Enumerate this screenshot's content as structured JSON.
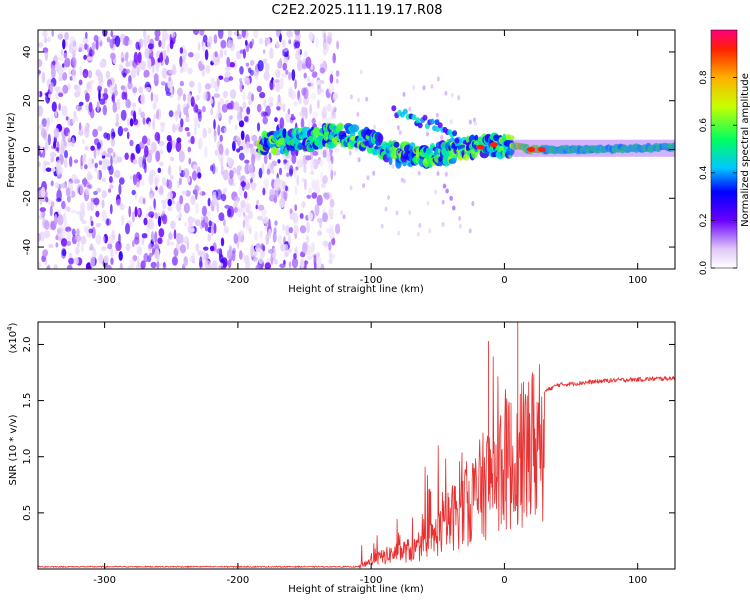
{
  "title": "C2E2.2025.111.19.17.R08",
  "chart_data": [
    {
      "type": "heatmap",
      "name": "spectrogram",
      "xlabel": "Height of straight line (km)",
      "ylabel": "Frequency (Hz)",
      "xlim": [
        -350,
        128
      ],
      "ylim": [
        -49,
        49
      ],
      "xticks": [
        -300,
        -200,
        -100,
        0,
        100
      ],
      "yticks": [
        -40,
        -20,
        0,
        20,
        40
      ],
      "noise_region_x": [
        -350,
        -133
      ],
      "signal_ridge": [
        {
          "x": -183,
          "y": 3
        },
        {
          "x": -160,
          "y": 3
        },
        {
          "x": -140,
          "y": 5
        },
        {
          "x": -120,
          "y": 6
        },
        {
          "x": -100,
          "y": 3
        },
        {
          "x": -80,
          "y": -2
        },
        {
          "x": -60,
          "y": -3
        },
        {
          "x": -40,
          "y": -1
        },
        {
          "x": -20,
          "y": 1
        },
        {
          "x": 0,
          "y": 2
        },
        {
          "x": 20,
          "y": 0
        },
        {
          "x": 60,
          "y": 0
        },
        {
          "x": 128,
          "y": 1
        }
      ],
      "upper_branch": [
        {
          "x": -83,
          "y": 15
        },
        {
          "x": -65,
          "y": 12
        },
        {
          "x": -50,
          "y": 10
        },
        {
          "x": -35,
          "y": 5
        }
      ],
      "colorbar": {
        "label": "Normalized spectral amplitude",
        "range": [
          0,
          1
        ],
        "ticks": [
          "0.0",
          "0.2",
          "0.4",
          "0.6",
          "0.8"
        ],
        "tick_values": [
          0.0,
          0.2,
          0.4,
          0.6,
          0.8
        ]
      }
    },
    {
      "type": "line",
      "name": "snr",
      "xlabel": "Height of straight line (km)",
      "ylabel": "SNR (10 * v/v)",
      "exponent_label": "(x10",
      "exponent": "4",
      "exponent_close": ")",
      "xlim": [
        -350,
        128
      ],
      "ylim": [
        0,
        2.2
      ],
      "xticks": [
        -300,
        -200,
        -100,
        0,
        100
      ],
      "yticks": [
        "0.5",
        "1.0",
        "1.5",
        "2.0"
      ],
      "ytick_values": [
        0.5,
        1.0,
        1.5,
        2.0
      ],
      "color": "#e83030",
      "series_envelope": [
        {
          "x": -350,
          "y": 0.02
        },
        {
          "x": -110,
          "y": 0.02
        },
        {
          "x": -100,
          "y": 0.1
        },
        {
          "x": -80,
          "y": 0.2
        },
        {
          "x": -60,
          "y": 0.25
        },
        {
          "x": -40,
          "y": 0.6
        },
        {
          "x": -20,
          "y": 0.9
        },
        {
          "x": -10,
          "y": 1.1
        },
        {
          "x": 0,
          "y": 1.3
        },
        {
          "x": 10,
          "y": 1.2
        },
        {
          "x": 20,
          "y": 1.45
        },
        {
          "x": 30,
          "y": 1.58
        },
        {
          "x": 40,
          "y": 1.64
        },
        {
          "x": 60,
          "y": 1.66
        },
        {
          "x": 80,
          "y": 1.68
        },
        {
          "x": 128,
          "y": 1.7
        }
      ],
      "peaks": [
        {
          "x": -12,
          "y": 2.03
        },
        {
          "x": 10,
          "y": 2.22
        },
        {
          "x": 1,
          "y": 1.5
        }
      ]
    }
  ]
}
